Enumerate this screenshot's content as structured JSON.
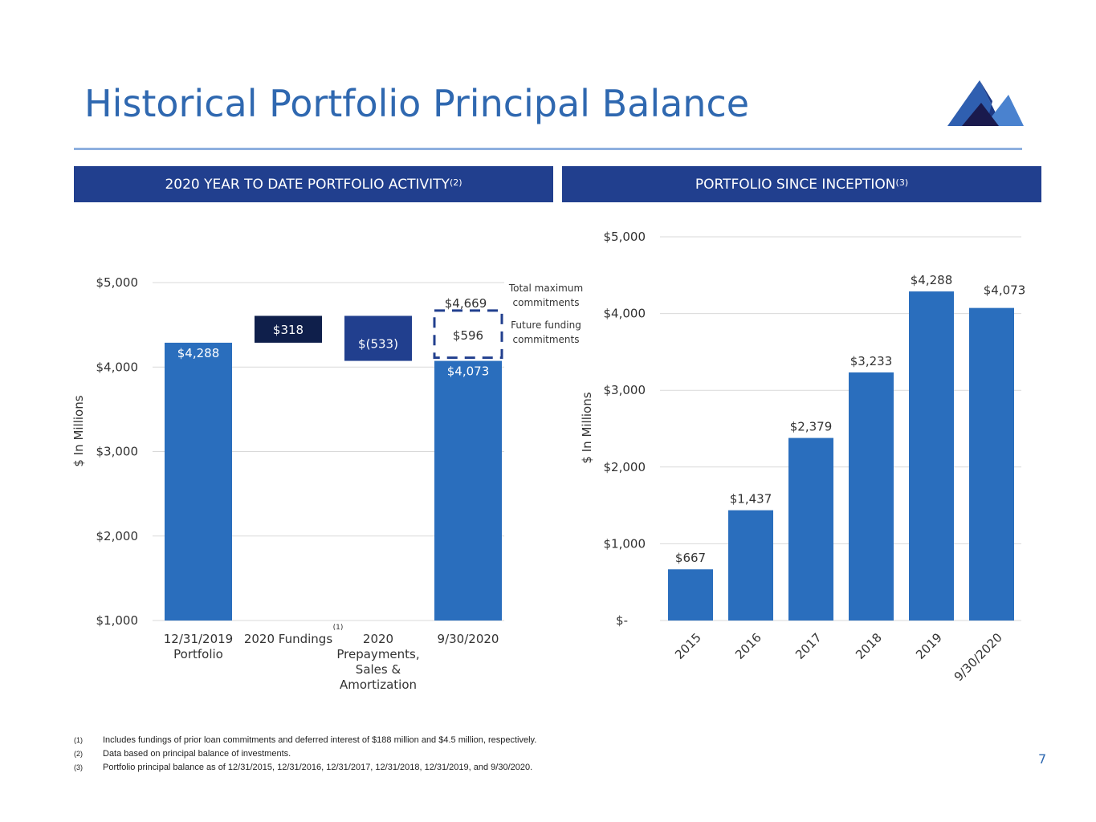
{
  "title": "Historical Portfolio Principal Balance",
  "colors": {
    "title": "#2f68b0",
    "header_bg": "#213f8e",
    "bar_blue": "#2a6ebd",
    "bar_dark_navy": "#0f1f4b",
    "bar_navy": "#213f8e",
    "dashed_border": "#213f8e"
  },
  "logo_icon": "mountain-peaks-icon",
  "left_panel": {
    "header": "2020 YEAR TO DATE PORTFOLIO ACTIVITY",
    "header_sup": "(2)"
  },
  "right_panel": {
    "header": "PORTFOLIO SINCE INCEPTION",
    "header_sup": "(3)"
  },
  "chart_data": [
    {
      "type": "bar",
      "subtype": "waterfall",
      "ylabel": "$ In Millions",
      "ylim": [
        1000,
        5000
      ],
      "y_ticks": [
        1000,
        2000,
        3000,
        4000,
        5000
      ],
      "y_tick_labels": [
        "$1,000",
        "$2,000",
        "$3,000",
        "$4,000",
        "$5,000"
      ],
      "grid": true,
      "categories": [
        {
          "label": [
            "12/31/2019",
            "Portfolio"
          ],
          "sup": ""
        },
        {
          "label": [
            "2020 Fundings"
          ],
          "sup": "(1)"
        },
        {
          "label": [
            "2020",
            "Prepayments,",
            "Sales &",
            "Amortization"
          ],
          "sup": ""
        },
        {
          "label": [
            "9/30/2020"
          ],
          "sup": ""
        }
      ],
      "bars": [
        {
          "name": "12/31/2019 Portfolio",
          "base": 0,
          "top": 4288,
          "label": "$4,288",
          "color": "#2a6ebd",
          "label_color": "#ffffff"
        },
        {
          "name": "2020 Fundings",
          "base": 4288,
          "top": 4606,
          "label": "$318",
          "color": "#0f1f4b",
          "label_color": "#ffffff"
        },
        {
          "name": "2020 Prepayments, Sales & Amortization",
          "base": 4073,
          "top": 4606,
          "label": "$(533)",
          "color": "#213f8e",
          "label_color": "#ffffff"
        },
        {
          "name": "9/30/2020",
          "base": 0,
          "top": 4073,
          "label": "$4,073",
          "color": "#2a6ebd",
          "label_color": "#ffffff"
        }
      ],
      "future_funding": {
        "base": 4073,
        "top": 4669,
        "label": "$596",
        "total_label": "$4,669"
      },
      "annotations": [
        {
          "lines": [
            "Total maximum",
            "commitments"
          ]
        },
        {
          "lines": [
            "Future funding",
            "commitments"
          ]
        }
      ]
    },
    {
      "type": "bar",
      "ylabel": "$ In Millions",
      "ylim": [
        0,
        5000
      ],
      "y_ticks": [
        0,
        1000,
        2000,
        3000,
        4000,
        5000
      ],
      "y_tick_labels": [
        "$-",
        "$1,000",
        "$2,000",
        "$3,000",
        "$4,000",
        "$5,000"
      ],
      "grid": true,
      "categories": [
        "2015",
        "2016",
        "2017",
        "2018",
        "2019",
        "9/30/2020"
      ],
      "values": [
        667,
        1437,
        2379,
        3233,
        4288,
        4073
      ],
      "value_labels": [
        "$667",
        "$1,437",
        "$2,379",
        "$3,233",
        "$4,288",
        "$4,073"
      ],
      "color": "#2a6ebd"
    }
  ],
  "footnotes": [
    {
      "num": "(1)",
      "text": "Includes fundings of prior loan commitments and deferred interest of $188 million and $4.5 million, respectively."
    },
    {
      "num": "(2)",
      "text": "Data based on principal balance of investments."
    },
    {
      "num": "(3)",
      "text": "Portfolio principal balance as of 12/31/2015, 12/31/2016, 12/31/2017, 12/31/2018, 12/31/2019, and 9/30/2020."
    }
  ],
  "page_number": "7"
}
